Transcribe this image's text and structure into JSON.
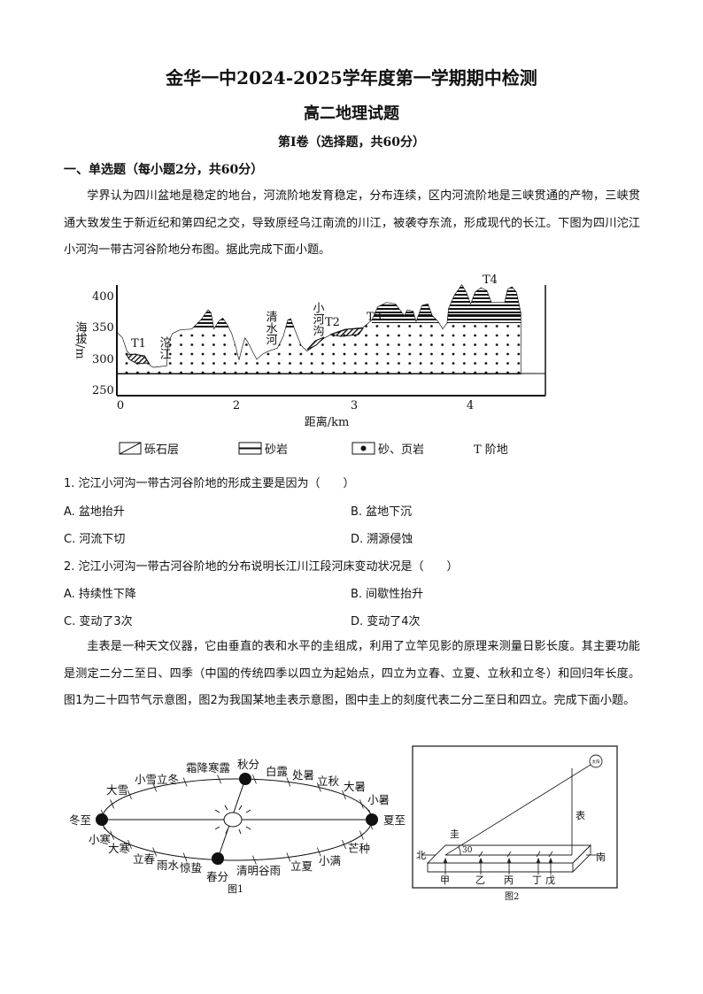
{
  "header": {
    "title": "金华一中2024-2025学年度第一学期期中检测",
    "subtitle": "高二地理试题",
    "volume": "第Ⅰ卷（选择题，共60分）",
    "section": "一、单选题（每小题2分，共60分）"
  },
  "passage1": "学界认为四川盆地是稳定的地台，河流阶地发育稳定，分布连续，区内河流阶地是三峡贯通的产物，三峡贯通大致发生于新近纪和第四纪之交，导致原经乌江南流的川江，被袭夺东流，形成现代的长江。下图为四川沱江小河沟一带古河谷阶地分布图。据此完成下面小题。",
  "figure_profile": {
    "ylabel": "海拔/m",
    "yticks": [
      "400",
      "350",
      "300",
      "250"
    ],
    "xticks": [
      "0",
      "2",
      "3",
      "4"
    ],
    "xlabel": "距离/km",
    "labels": {
      "t1": "T1",
      "t2": "T2",
      "t3": "T3",
      "t4": "T4",
      "tuojiang": "沱江",
      "qingshui": "清水河",
      "xiaohegou": "小河沟"
    },
    "legend": [
      "砾石层",
      "砂岩",
      "砂、页岩",
      "T 阶地"
    ]
  },
  "questions": [
    {
      "stem": "1. 沱江小河沟一带古河谷阶地的形成主要是因为（　　）",
      "options": [
        "A. 盆地抬升",
        "B. 盆地下沉",
        "C. 河流下切",
        "D. 溯源侵蚀"
      ]
    },
    {
      "stem": "2. 沱江小河沟一带古河谷阶地的分布说明长江川江段河床变动状况是（　　）",
      "options": [
        "A. 持续性下降",
        "B. 间歇性抬升",
        "C. 变动了3次",
        "D. 变动了4次"
      ]
    }
  ],
  "passage2": "圭表是一种天文仪器，它由垂直的表和水平的圭组成，利用了立竿见影的原理来测量日影长度。其主要功能是测定二分二至日、四季（中国的传统四季以四立为起始点，四立为立春、立夏、立秋和立冬）和回归年长度。图1为二十四节气示意图，图2为我国某地圭表示意图，图中圭上的刻度代表二分二至日和四立。完成下面小题。",
  "figure1": {
    "caption": "图1",
    "terms": {
      "dongzhi": "冬至",
      "xiazhi": "夏至",
      "qiufen": "秋分",
      "chunfen": "春分",
      "xiaohan": "小寒",
      "dahan": "大寒",
      "lichun": "立春",
      "yushui": "雨水",
      "jingzhe": "惊蛰",
      "qingming_guyu": "清明谷雨",
      "lixia": "立夏",
      "xiaoman": "小满",
      "mangzhong": "芒种",
      "xiaoshu": "小暑",
      "dashu": "大暑",
      "liqiu": "立秋",
      "chushu": "处暑",
      "bailu": "白露",
      "shuangjiang_hanlu": "霜降寒露",
      "xiaoxue_lidong": "小雪立冬",
      "daxue": "大雪"
    }
  },
  "figure2": {
    "caption": "图2",
    "sun": "太阳",
    "gui": "圭",
    "biao": "表",
    "north": "北",
    "south": "南",
    "angle": "30",
    "marks": [
      "甲",
      "乙",
      "丙",
      "丁",
      "戊"
    ]
  }
}
